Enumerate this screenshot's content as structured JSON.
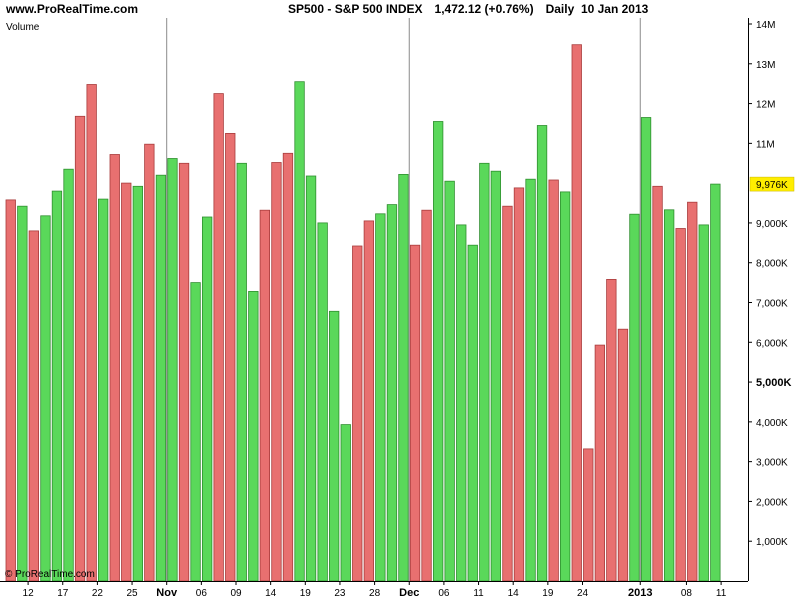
{
  "header": {
    "site": "www.ProRealTime.com",
    "symbol": "SP500 - S&P 500 INDEX",
    "price": "1,472.12 (+0.76%)",
    "period": "Daily  10 Jan 2013"
  },
  "footer": {
    "copyright": "© ProRealTime.com"
  },
  "colors": {
    "up": "#5ad85a",
    "down": "#e87070",
    "up_edge": "#2f8f2f",
    "down_edge": "#a83c3c",
    "indicator_label": "#3cb043",
    "last_value_bg": "#ffee00"
  },
  "chart_data": {
    "type": "bar",
    "indicator_label": "Volume",
    "ylim": [
      0,
      14000000
    ],
    "y_ticks": [
      {
        "value": 1000000,
        "label": "1,000K"
      },
      {
        "value": 2000000,
        "label": "2,000K"
      },
      {
        "value": 3000000,
        "label": "3,000K"
      },
      {
        "value": 4000000,
        "label": "4,000K"
      },
      {
        "value": 5000000,
        "label": "5,000K",
        "bold": true
      },
      {
        "value": 6000000,
        "label": "6,000K"
      },
      {
        "value": 7000000,
        "label": "7,000K"
      },
      {
        "value": 8000000,
        "label": "8,000K"
      },
      {
        "value": 9000000,
        "label": "9,000K"
      },
      {
        "value": 11000000,
        "label": "11M"
      },
      {
        "value": 12000000,
        "label": "12M"
      },
      {
        "value": 13000000,
        "label": "13M"
      },
      {
        "value": 14000000,
        "label": "14M"
      }
    ],
    "last_value": {
      "value": 9976000,
      "label": "9,976K"
    },
    "x_ticks": [
      {
        "index": 1.5,
        "label": "12"
      },
      {
        "index": 4.5,
        "label": "17"
      },
      {
        "index": 7.5,
        "label": "22"
      },
      {
        "index": 10.5,
        "label": "25"
      },
      {
        "index": 13.5,
        "label": "Nov",
        "bold": true,
        "separator": true
      },
      {
        "index": 16.5,
        "label": "06"
      },
      {
        "index": 19.5,
        "label": "09"
      },
      {
        "index": 22.5,
        "label": "14"
      },
      {
        "index": 25.5,
        "label": "19"
      },
      {
        "index": 28.5,
        "label": "23"
      },
      {
        "index": 31.5,
        "label": "28"
      },
      {
        "index": 34.5,
        "label": "Dec",
        "bold": true,
        "separator": true
      },
      {
        "index": 37.5,
        "label": "06"
      },
      {
        "index": 40.5,
        "label": "11"
      },
      {
        "index": 43.5,
        "label": "14"
      },
      {
        "index": 46.5,
        "label": "19"
      },
      {
        "index": 49.5,
        "label": "24"
      },
      {
        "index": 54.5,
        "label": "2013",
        "bold": true,
        "separator": true
      },
      {
        "index": 58.5,
        "label": "08"
      },
      {
        "index": 61.5,
        "label": "11"
      }
    ],
    "values": [
      9580000,
      9420000,
      8800000,
      9180000,
      9800000,
      10350000,
      11680000,
      12480000,
      9600000,
      10720000,
      10000000,
      9920000,
      10980000,
      10200000,
      10620000,
      10500000,
      7500000,
      9150000,
      12250000,
      11250000,
      10500000,
      7280000,
      9320000,
      10520000,
      10750000,
      12550000,
      10180000,
      9000000,
      6780000,
      3930000,
      8420000,
      9050000,
      9230000,
      9460000,
      10220000,
      8440000,
      9320000,
      11550000,
      10050000,
      8950000,
      8440000,
      10500000,
      10300000,
      9420000,
      9880000,
      10100000,
      11450000,
      10080000,
      9780000,
      13480000,
      3320000,
      5930000,
      7580000,
      6330000,
      9220000,
      11650000,
      9920000,
      9330000,
      8860000,
      9520000,
      8950000,
      9976000
    ],
    "directions": [
      "down",
      "up",
      "down",
      "up",
      "up",
      "up",
      "down",
      "down",
      "up",
      "down",
      "down",
      "up",
      "down",
      "up",
      "up",
      "down",
      "up",
      "up",
      "down",
      "down",
      "up",
      "up",
      "down",
      "down",
      "down",
      "up",
      "up",
      "up",
      "up",
      "up",
      "down",
      "down",
      "up",
      "up",
      "up",
      "down",
      "down",
      "up",
      "up",
      "up",
      "up",
      "up",
      "up",
      "down",
      "down",
      "up",
      "up",
      "down",
      "up",
      "down",
      "down",
      "down",
      "down",
      "down",
      "up",
      "up",
      "down",
      "up",
      "down",
      "down",
      "up",
      "up"
    ]
  }
}
